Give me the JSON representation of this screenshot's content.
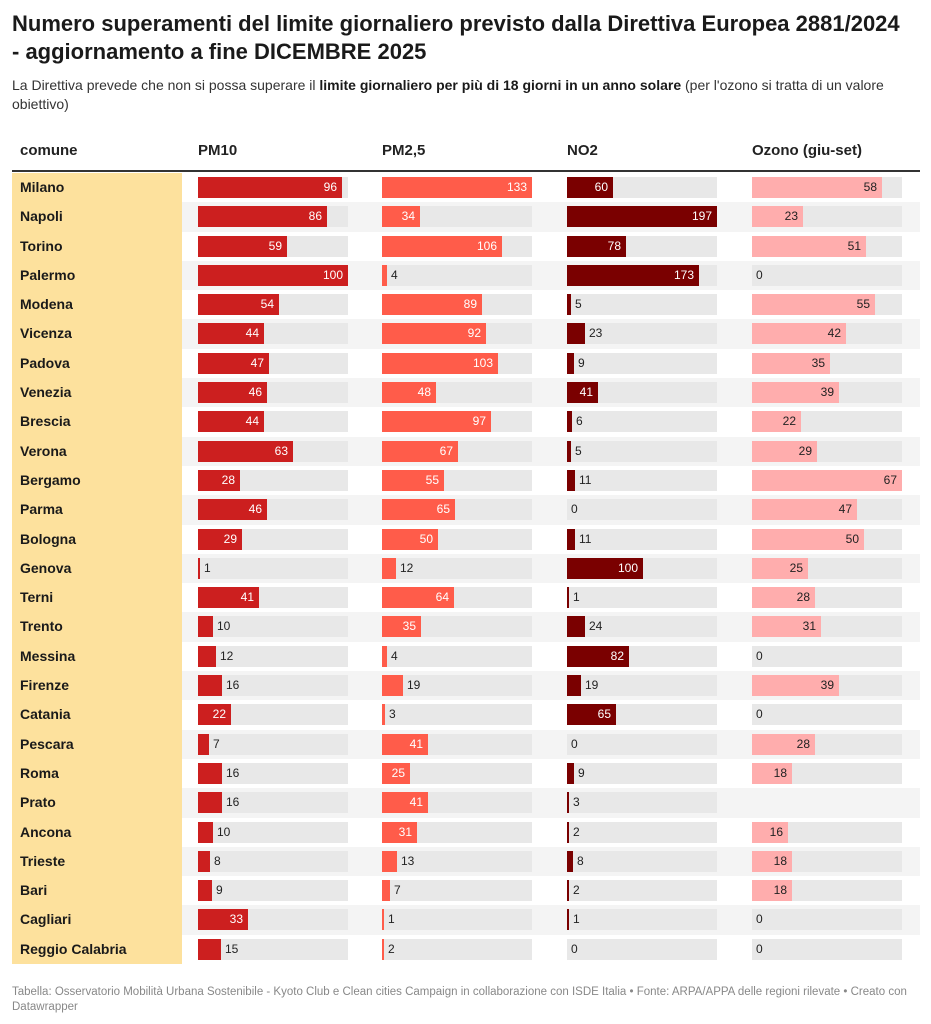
{
  "title": "Numero superamenti del limite giornaliero previsto dalla Direttiva Europea 2881/2024 - aggiornamento a fine DICEMBRE 2025",
  "subtitle": {
    "part1": "La Direttiva prevede che non si possa superare il ",
    "bold": "limite giornaliero per più di 18 giorni in un anno solare",
    "part2": " (per l'ozono si tratta di un valore obiettivo)"
  },
  "source": "Tabella: Osservatorio Mobilità Urbana Sostenibile - Kyoto Club e Clean cities Campaign in collaborazione con ISDE Italia • Fonte: ARPA/APPA delle regioni rilevate • Creato con Datawrapper",
  "chart_data": {
    "type": "table",
    "columns": [
      {
        "key": "comune",
        "label": "comune"
      },
      {
        "key": "pm10",
        "label": "PM10",
        "color": "#cc1f1f",
        "max": 100
      },
      {
        "key": "pm25",
        "label": "PM2,5",
        "color": "#ff5c4a",
        "max": 133
      },
      {
        "key": "no2",
        "label": "NO2",
        "color": "#7a0000",
        "max": 197
      },
      {
        "key": "ozono",
        "label": "Ozono (giu-set)",
        "color": "#ffadad",
        "max": 67
      }
    ],
    "rows": [
      {
        "comune": "Milano",
        "pm10": 96,
        "pm25": 133,
        "no2": 60,
        "ozono": 58
      },
      {
        "comune": "Napoli",
        "pm10": 86,
        "pm25": 34,
        "no2": 197,
        "ozono": 23
      },
      {
        "comune": "Torino",
        "pm10": 59,
        "pm25": 106,
        "no2": 78,
        "ozono": 51
      },
      {
        "comune": "Palermo",
        "pm10": 100,
        "pm25": 4,
        "no2": 173,
        "ozono": 0
      },
      {
        "comune": "Modena",
        "pm10": 54,
        "pm25": 89,
        "no2": 5,
        "ozono": 55
      },
      {
        "comune": "Vicenza",
        "pm10": 44,
        "pm25": 92,
        "no2": 23,
        "ozono": 42
      },
      {
        "comune": "Padova",
        "pm10": 47,
        "pm25": 103,
        "no2": 9,
        "ozono": 35
      },
      {
        "comune": "Venezia",
        "pm10": 46,
        "pm25": 48,
        "no2": 41,
        "ozono": 39
      },
      {
        "comune": "Brescia",
        "pm10": 44,
        "pm25": 97,
        "no2": 6,
        "ozono": 22
      },
      {
        "comune": "Verona",
        "pm10": 63,
        "pm25": 67,
        "no2": 5,
        "ozono": 29
      },
      {
        "comune": "Bergamo",
        "pm10": 28,
        "pm25": 55,
        "no2": 11,
        "ozono": 67
      },
      {
        "comune": "Parma",
        "pm10": 46,
        "pm25": 65,
        "no2": 0,
        "ozono": 47
      },
      {
        "comune": "Bologna",
        "pm10": 29,
        "pm25": 50,
        "no2": 11,
        "ozono": 50
      },
      {
        "comune": "Genova",
        "pm10": 1,
        "pm25": 12,
        "no2": 100,
        "ozono": 25
      },
      {
        "comune": "Terni",
        "pm10": 41,
        "pm25": 64,
        "no2": 1,
        "ozono": 28
      },
      {
        "comune": "Trento",
        "pm10": 10,
        "pm25": 35,
        "no2": 24,
        "ozono": 31
      },
      {
        "comune": "Messina",
        "pm10": 12,
        "pm25": 4,
        "no2": 82,
        "ozono": 0
      },
      {
        "comune": "Firenze",
        "pm10": 16,
        "pm25": 19,
        "no2": 19,
        "ozono": 39
      },
      {
        "comune": "Catania",
        "pm10": 22,
        "pm25": 3,
        "no2": 65,
        "ozono": 0
      },
      {
        "comune": "Pescara",
        "pm10": 7,
        "pm25": 41,
        "no2": 0,
        "ozono": 28
      },
      {
        "comune": "Roma",
        "pm10": 16,
        "pm25": 25,
        "no2": 9,
        "ozono": 18
      },
      {
        "comune": "Prato",
        "pm10": 16,
        "pm25": 41,
        "no2": 3,
        "ozono": null
      },
      {
        "comune": "Ancona",
        "pm10": 10,
        "pm25": 31,
        "no2": 2,
        "ozono": 16
      },
      {
        "comune": "Trieste",
        "pm10": 8,
        "pm25": 13,
        "no2": 8,
        "ozono": 18
      },
      {
        "comune": "Bari",
        "pm10": 9,
        "pm25": 7,
        "no2": 2,
        "ozono": 18
      },
      {
        "comune": "Cagliari",
        "pm10": 33,
        "pm25": 1,
        "no2": 1,
        "ozono": 0
      },
      {
        "comune": "Reggio Calabria",
        "pm10": 15,
        "pm25": 2,
        "no2": 0,
        "ozono": 0
      }
    ]
  }
}
